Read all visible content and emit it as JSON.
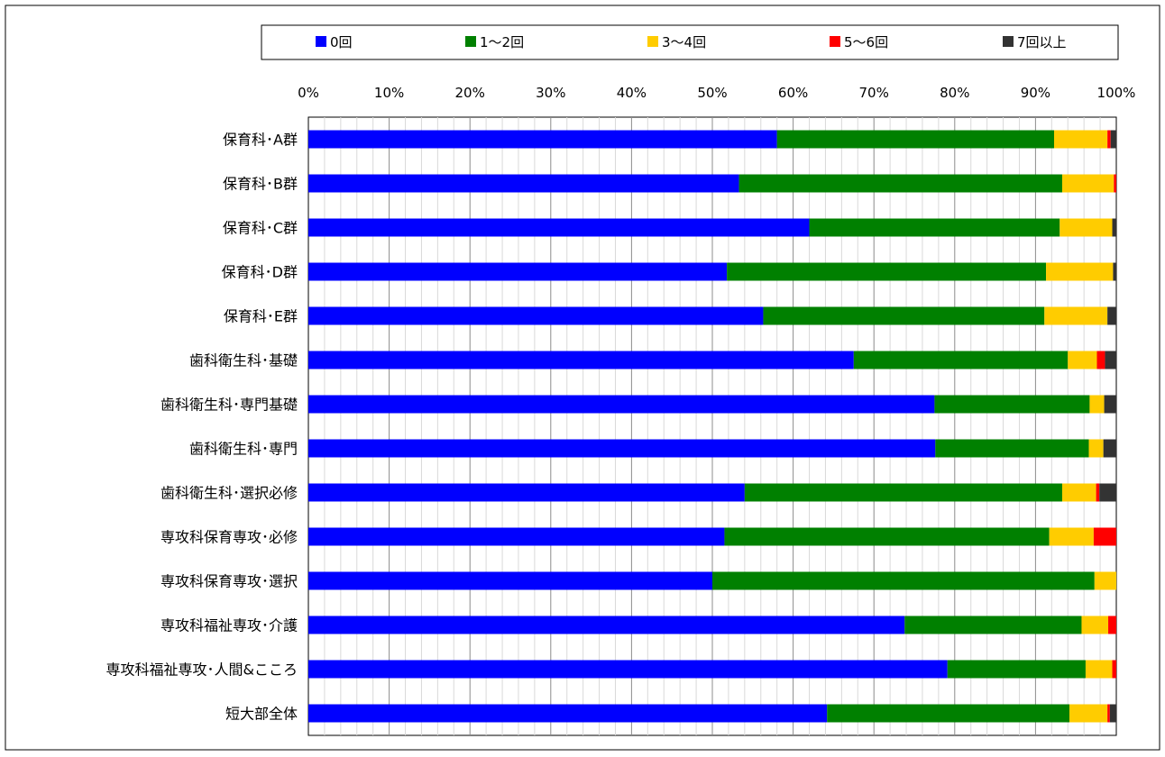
{
  "chart_data": {
    "type": "bar",
    "orientation": "horizontal",
    "stacked": "percent",
    "categories": [
      "保育科･A群",
      "保育科･B群",
      "保育科･C群",
      "保育科･D群",
      "保育科･E群",
      "歯科衛生科･基礎",
      "歯科衛生科･専門基礎",
      "歯科衛生科･専門",
      "歯科衛生科･選択必修",
      "専攻科保育専攻･必修",
      "専攻科保育専攻･選択",
      "専攻科福祉専攻･介護",
      "専攻科福祉専攻･人間&こころ",
      "短大部全体"
    ],
    "series": [
      {
        "name": "0回",
        "color": "#0000FF",
        "values": [
          58.0,
          53.3,
          62.0,
          51.8,
          56.3,
          67.5,
          77.5,
          77.6,
          54.0,
          51.5,
          50.0,
          73.8,
          79.1,
          64.2
        ]
      },
      {
        "name": "1～2回",
        "color": "#008000",
        "values": [
          34.3,
          40.0,
          31.0,
          39.5,
          34.8,
          26.5,
          19.2,
          19.0,
          39.3,
          40.2,
          47.3,
          21.9,
          17.1,
          30.0
        ]
      },
      {
        "name": "3～4回",
        "color": "#FFCC00",
        "values": [
          6.6,
          6.4,
          6.5,
          8.3,
          7.8,
          3.6,
          1.8,
          1.8,
          4.2,
          5.5,
          2.7,
          3.3,
          3.3,
          4.7
        ]
      },
      {
        "name": "5～6回",
        "color": "#FF0000",
        "values": [
          0.4,
          0.3,
          0.0,
          0.0,
          0.0,
          1.0,
          0.0,
          0.0,
          0.4,
          2.8,
          0.0,
          1.0,
          0.5,
          0.3
        ]
      },
      {
        "name": "7回以上",
        "color": "#333333",
        "values": [
          0.7,
          0.0,
          0.5,
          0.4,
          1.1,
          1.4,
          1.5,
          1.6,
          2.1,
          0.0,
          0.0,
          0.0,
          0.0,
          0.8
        ]
      }
    ],
    "xlim": [
      0,
      100
    ],
    "xticks": [
      "0%",
      "10%",
      "20%",
      "30%",
      "40%",
      "50%",
      "60%",
      "70%",
      "80%",
      "90%",
      "100%"
    ],
    "title": "",
    "xlabel": "",
    "ylabel": "",
    "grid": true,
    "legend": "top"
  }
}
